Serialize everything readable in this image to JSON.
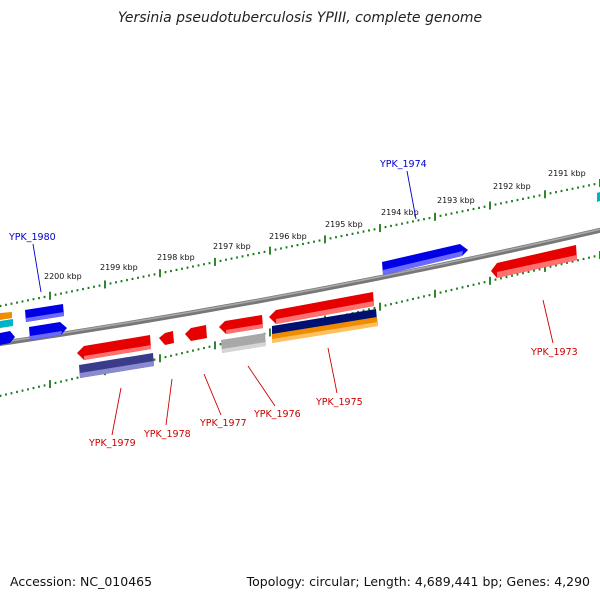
{
  "title": "Yersinia pseudotuberculosis YPIII, complete genome",
  "footer": {
    "accession": "Accession: NC_010465",
    "topology": "Topology: circular; Length: 4,689,441 bp; Genes: 4,290"
  },
  "kbp_labels": [
    "2191 kbp",
    "2192 kbp",
    "2193 kbp",
    "2194 kbp",
    "2195 kbp",
    "2196 kbp",
    "2197 kbp",
    "2198 kbp",
    "2199 kbp",
    "2200 kbp"
  ],
  "gene_labels": {
    "top": [
      "YPK_1974",
      "YPK_1980"
    ],
    "bottom": [
      "YPK_1973",
      "YPK_1975",
      "YPK_1976",
      "YPK_1977",
      "YPK_1978",
      "YPK_1979"
    ]
  },
  "colors": {
    "forward_gene": "#0000e6",
    "reverse_gene": "#e60000",
    "purple_gene": "#3b3b8c",
    "navy_gene": "#001070",
    "orange_gene": "#f08c00",
    "grey_gene": "#a8a8a8",
    "cyan_gene": "#00b4c8",
    "backbone": "#808080",
    "tick": "#1a7a1a",
    "top_label": "#0000cc",
    "bottom_label": "#cc0000"
  }
}
